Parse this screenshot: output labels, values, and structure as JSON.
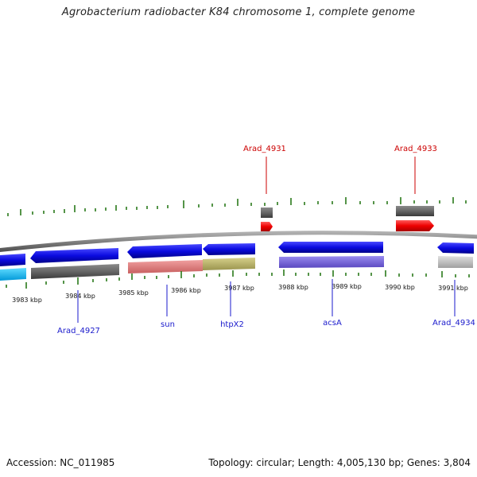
{
  "title": "Agrobacterium radiobacter K84 chromosome 1, complete genome",
  "footer": {
    "accession": "Accession: NC_011985",
    "topology": "Topology: circular; Length: 4,005,130 bp; Genes: 3,804"
  },
  "kbp_labels": [
    "3983 kbp",
    "3984 kbp",
    "3985 kbp",
    "3986 kbp",
    "3987 kbp",
    "3988 kbp",
    "3989 kbp",
    "3990 kbp",
    "3991 kbp"
  ],
  "gene_labels_top": [
    "Arad_4931",
    "Arad_4933"
  ],
  "gene_labels_bottom": [
    "Arad_4927",
    "sun",
    "htpX2",
    "acsA",
    "Arad_4934"
  ],
  "colors": {
    "forward_gene": "#0a0ae0",
    "rna_red": "#ee0000",
    "cds_gray": "#666666",
    "tick_green": "#2a7a1a",
    "backbone": "#8a8a8a",
    "salmon": "#e08080",
    "olive": "#bdb76b",
    "purple": "#7b68d8",
    "cyan": "#00bfff",
    "light_gray": "#c0c0c0"
  }
}
